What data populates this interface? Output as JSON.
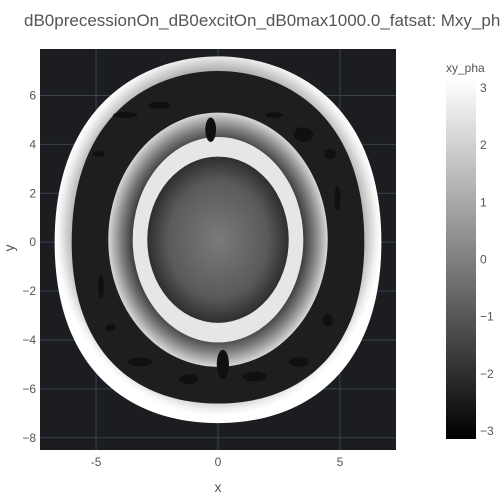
{
  "chart_data": {
    "type": "heatmap",
    "title": "dB0precessionOn_dB0excitOn_dB0max1000.0_fatsat: Mxy_pha",
    "xlabel": "x",
    "ylabel": "y",
    "xlim": [
      -7.3,
      7.3
    ],
    "ylim": [
      -8.5,
      7.9
    ],
    "xticks": [
      "-5",
      "0",
      "5"
    ],
    "xtick_values": [
      -5,
      0,
      5
    ],
    "yticks": [
      "6",
      "4",
      "2",
      "0",
      "−2",
      "−4",
      "−6",
      "−8"
    ],
    "ytick_values": [
      6,
      4,
      2,
      0,
      -2,
      -4,
      -6,
      -8
    ],
    "colorbar": {
      "title": "xy_pha",
      "range": [
        -3.14,
        3.14
      ],
      "ticks": [
        "3",
        "2",
        "1",
        "0",
        "−1",
        "−2",
        "−3"
      ],
      "tick_values": [
        3,
        2,
        1,
        0,
        -1,
        -2,
        -3
      ],
      "colorscale": "greys"
    },
    "grid": true,
    "background_color": "#1b1d20",
    "grid_color": "#3a4250",
    "structures": {
      "head": {
        "center": [
          0,
          0
        ],
        "rx": 6.7,
        "ry_top": 7.6,
        "ry_bottom": 7.4
      },
      "outer_ring": {
        "center": [
          0,
          0
        ],
        "rx": 6.0,
        "ry_top": 7.0,
        "ry_bottom": 6.6
      },
      "inner_ring_outer": {
        "center": [
          0,
          0.1
        ],
        "rx": 4.5,
        "ry": 5.2
      },
      "inner_ring_inner": {
        "center": [
          0,
          0.1
        ],
        "rx": 3.5,
        "ry": 4.2
      },
      "core": {
        "center": [
          0,
          0.1
        ],
        "rx": 2.9,
        "ry": 3.4
      }
    }
  }
}
